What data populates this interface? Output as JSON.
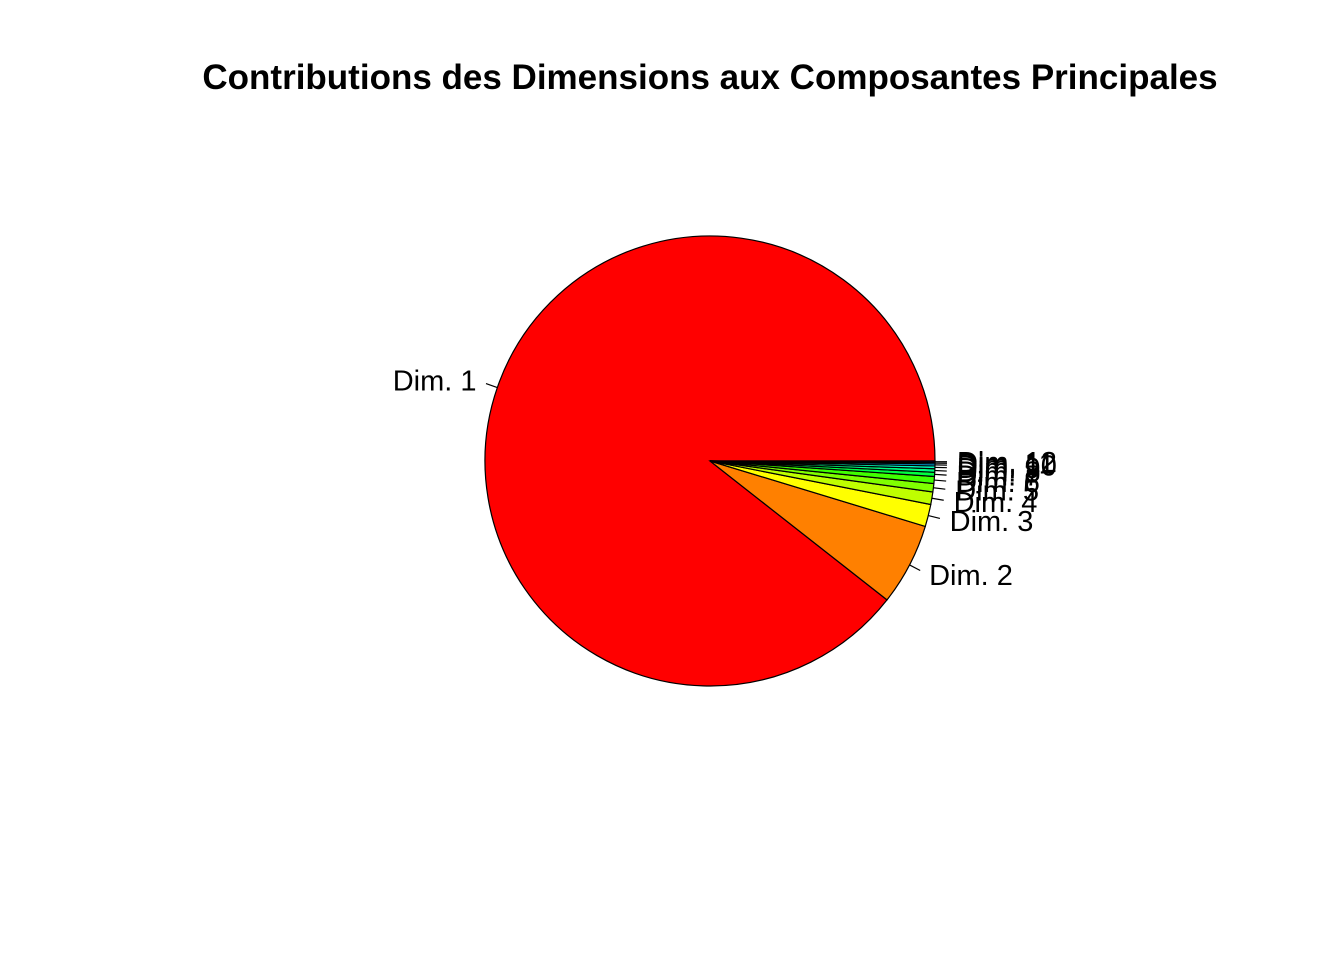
{
  "chart_data": {
    "type": "pie",
    "title": "Contributions des Dimensions aux Composantes Principales",
    "categories": [
      "Dim. 1",
      "Dim. 2",
      "Dim. 3",
      "Dim. 4",
      "Dim. 5",
      "Dim. 6",
      "Dim. 7",
      "Dim. 8",
      "Dim. 9",
      "Dim. 10",
      "Dim. 11",
      "Dim. 12"
    ],
    "values": [
      89.5,
      5.9,
      1.6,
      0.9,
      0.6,
      0.5,
      0.3,
      0.25,
      0.2,
      0.15,
      0.1,
      0.1
    ],
    "colors": [
      "#FF0000",
      "#FF8000",
      "#FFFF00",
      "#80FF00",
      "#00FF00",
      "#00FF80",
      "#00FFFF",
      "#0080FF",
      "#0000FF",
      "#8000FF",
      "#FF00FF",
      "#FF0080"
    ],
    "clockwise": false,
    "start_angle_deg": 0,
    "legend": "none",
    "grid": false
  }
}
